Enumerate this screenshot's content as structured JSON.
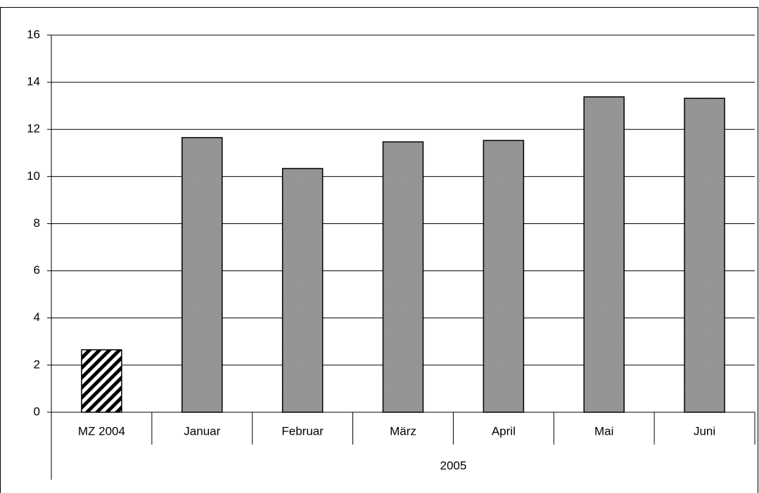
{
  "chart_data": {
    "type": "bar",
    "categories": [
      "MZ 2004",
      "Januar",
      "Februar",
      "März",
      "April",
      "Mai",
      "Juni"
    ],
    "group_label": "2005",
    "values": [
      2.65,
      11.65,
      10.34,
      11.47,
      11.53,
      13.38,
      13.32
    ],
    "bar_fills": [
      "hatch",
      "gray",
      "gray",
      "gray",
      "gray",
      "gray",
      "gray"
    ],
    "ylim": [
      0,
      16
    ],
    "yticks": [
      0,
      2,
      4,
      6,
      8,
      10,
      12,
      14,
      16
    ],
    "grid": true
  }
}
